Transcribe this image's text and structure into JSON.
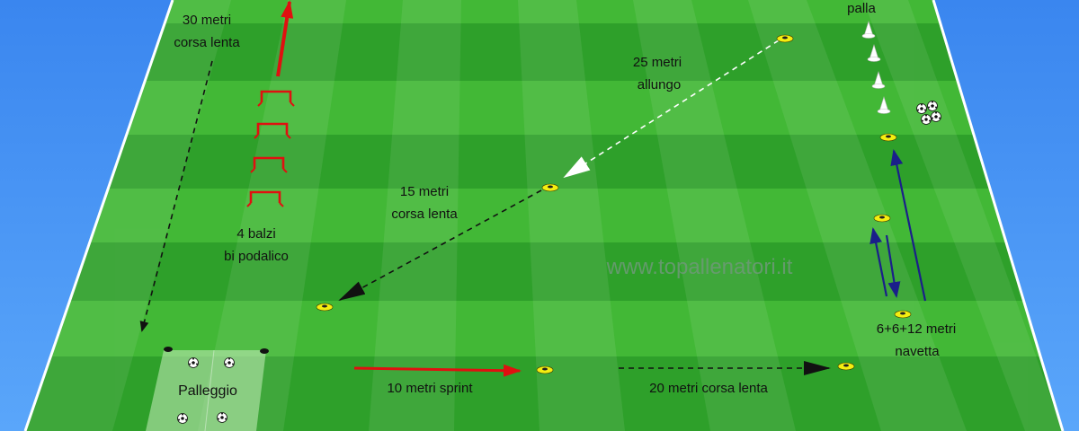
{
  "diagram": {
    "watermark": "www.topallenatori.it",
    "labels": {
      "jog30_line1": "30 metri",
      "jog30_line2": "corsa lenta",
      "hops_line1": "4 balzi",
      "hops_line2": "bi podalico",
      "stride25_line1": "25 metri",
      "stride25_line2": "allungo",
      "jog15_line1": "15 metri",
      "jog15_line2": "corsa lenta",
      "sprint10": "10 metri sprint",
      "jog20": "20 metri corsa lenta",
      "shuttle_line1": "6+6+12 metri",
      "shuttle_line2": "navetta",
      "ball_top": "palla",
      "dribble_zone": "Palleggio"
    },
    "colors": {
      "background": "#3d8ff0",
      "field_dark": "#2ea02a",
      "field_light": "#4cc23e",
      "sprint_arrow": "#e01010",
      "shuttle_arrow": "#1a1f8a",
      "cone": "#f5ee10"
    }
  }
}
